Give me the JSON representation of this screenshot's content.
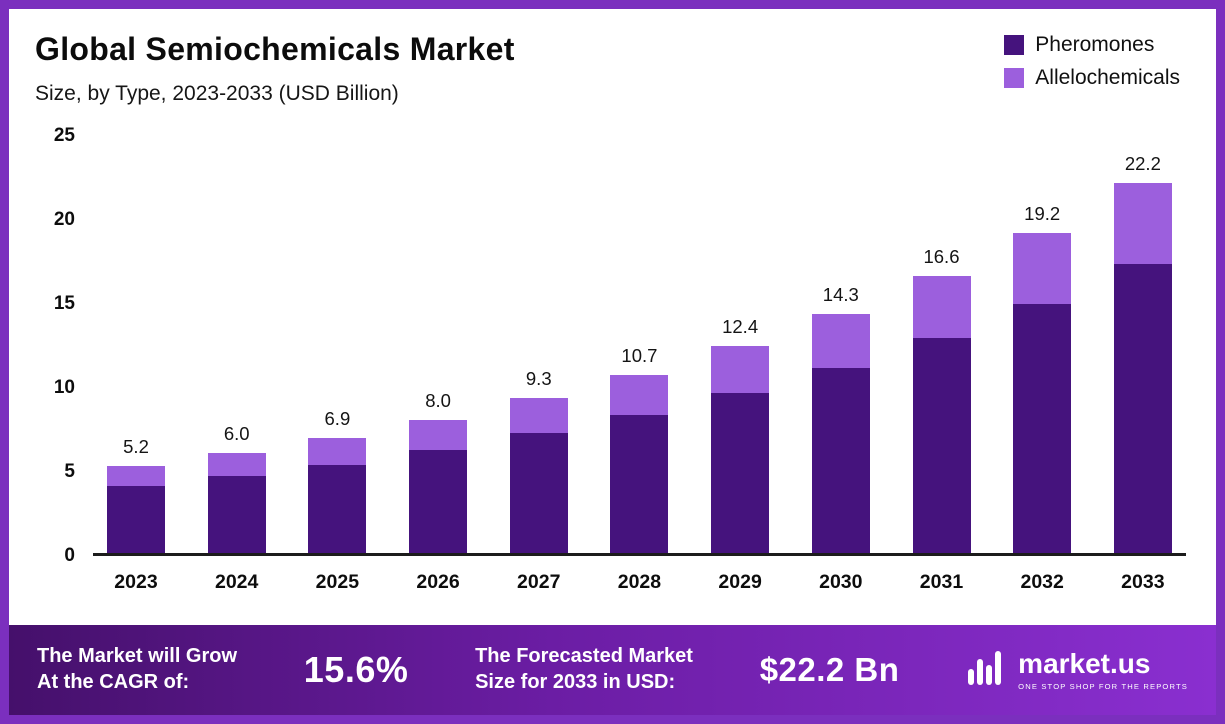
{
  "chart": {
    "title": "Global Semiochemicals Market",
    "subtitle": "Size, by Type, 2023-2033 (USD Billion)"
  },
  "chart_data": {
    "type": "bar",
    "stacked": true,
    "title": "Global Semiochemicals Market",
    "subtitle": "Size, by Type, 2023-2033 (USD Billion)",
    "categories": [
      "2023",
      "2024",
      "2025",
      "2026",
      "2027",
      "2028",
      "2029",
      "2030",
      "2031",
      "2032",
      "2033"
    ],
    "series": [
      {
        "name": "Pheromones",
        "color": "#45137d",
        "values": [
          4.0,
          4.6,
          5.3,
          6.2,
          7.2,
          8.3,
          9.6,
          11.1,
          12.9,
          14.9,
          17.3
        ]
      },
      {
        "name": "Allelochemicals",
        "color": "#9c5fdd",
        "values": [
          1.2,
          1.4,
          1.6,
          1.8,
          2.1,
          2.4,
          2.8,
          3.2,
          3.7,
          4.3,
          4.9
        ]
      }
    ],
    "totals": [
      "5.2",
      "6.0",
      "6.9",
      "8.0",
      "9.3",
      "10.7",
      "12.4",
      "14.3",
      "16.6",
      "19.2",
      "22.2"
    ],
    "xlabel": "",
    "ylabel": "",
    "ylim": [
      0,
      25
    ],
    "yticks": [
      0,
      5,
      10,
      15,
      20,
      25
    ],
    "grid": false,
    "legend_position": "top-right"
  },
  "banner": {
    "cagr_label": "The Market will Grow\nAt the CAGR of:",
    "cagr_value": "15.6%",
    "forecast_label": "The Forecasted Market\nSize for 2033 in USD:",
    "forecast_value": "$22.2 Bn",
    "brand": "market.us",
    "tagline": "ONE STOP SHOP FOR THE REPORTS"
  },
  "colors": {
    "pheromones": "#45137d",
    "allelochemicals": "#9c5fdd",
    "frame_border": "#7b2fbe",
    "banner_gradient_start": "#45106b",
    "banner_gradient_end": "#8a2fd0"
  }
}
